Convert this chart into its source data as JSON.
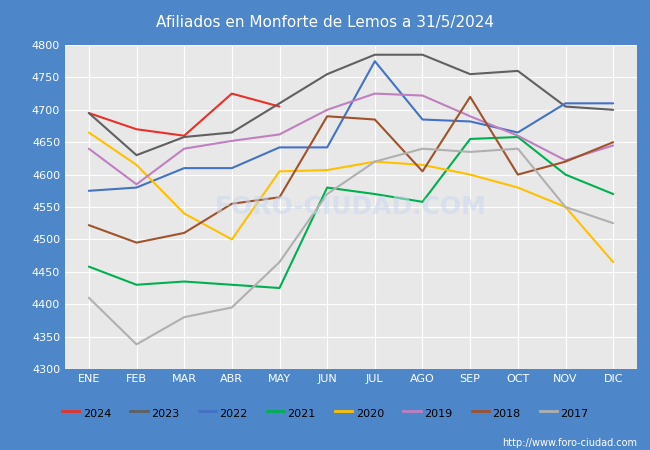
{
  "title": "Afiliados en Monforte de Lemos a 31/5/2024",
  "ylim": [
    4300,
    4800
  ],
  "yticks": [
    4300,
    4350,
    4400,
    4450,
    4500,
    4550,
    4600,
    4650,
    4700,
    4750,
    4800
  ],
  "months": [
    "ENE",
    "FEB",
    "MAR",
    "ABR",
    "MAY",
    "JUN",
    "JUL",
    "AGO",
    "SEP",
    "OCT",
    "NOV",
    "DIC"
  ],
  "watermark": "FORO-CIUDAD.COM",
  "url": "http://www.foro-ciudad.com",
  "series": {
    "2024": {
      "color": "#e8312a",
      "data": [
        4695,
        4670,
        4660,
        4725,
        4705,
        null,
        null,
        null,
        null,
        null,
        null,
        null
      ]
    },
    "2023": {
      "color": "#606060",
      "data": [
        4695,
        4630,
        4658,
        4665,
        4710,
        4755,
        4785,
        4785,
        4755,
        4760,
        4705,
        4700
      ]
    },
    "2022": {
      "color": "#4472c4",
      "data": [
        4575,
        4580,
        4610,
        4610,
        4642,
        4642,
        4775,
        4685,
        4682,
        4665,
        4710,
        4710
      ]
    },
    "2021": {
      "color": "#00b050",
      "data": [
        4458,
        4430,
        4435,
        4430,
        4425,
        4580,
        4570,
        4558,
        4655,
        4658,
        4600,
        4570
      ]
    },
    "2020": {
      "color": "#ffc000",
      "data": [
        4665,
        4615,
        4540,
        4500,
        4605,
        4607,
        4620,
        4615,
        4600,
        4580,
        4550,
        4465
      ]
    },
    "2019": {
      "color": "#bf7fc0",
      "data": [
        4640,
        4585,
        4640,
        4652,
        4662,
        4700,
        4725,
        4722,
        4690,
        4660,
        4622,
        4645
      ]
    },
    "2018": {
      "color": "#a0522d",
      "data": [
        4522,
        4495,
        4510,
        4555,
        4565,
        4690,
        4685,
        4605,
        4720,
        4600,
        4620,
        4650
      ]
    },
    "2017": {
      "color": "#b0b0b0",
      "data": [
        4410,
        4338,
        4380,
        4395,
        4465,
        4570,
        4620,
        4640,
        4635,
        4640,
        4550,
        4525
      ]
    }
  },
  "fig_bg": "#4e87c9",
  "plot_bg": "#e8e8e8",
  "grid_color": "#ffffff",
  "legend_order": [
    "2024",
    "2023",
    "2022",
    "2021",
    "2020",
    "2019",
    "2018",
    "2017"
  ]
}
